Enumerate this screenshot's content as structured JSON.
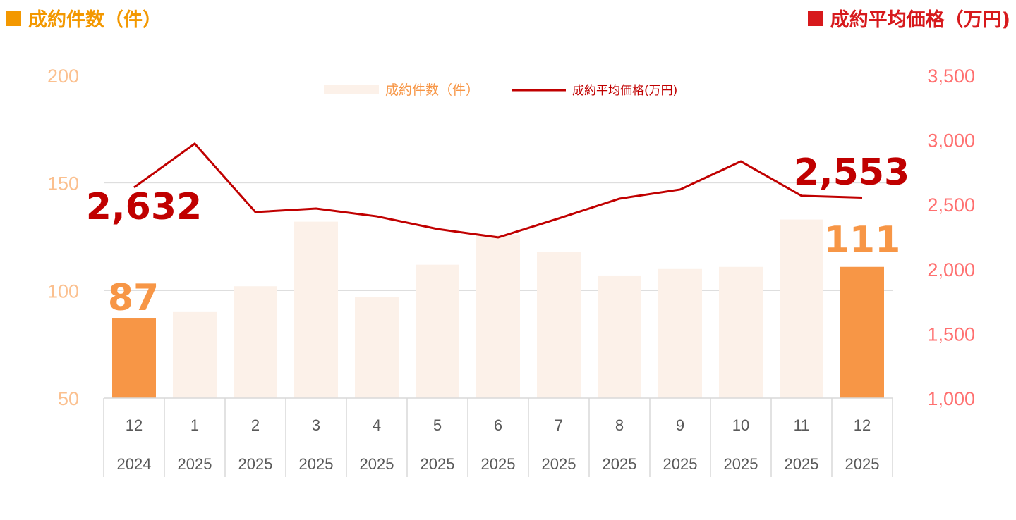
{
  "left_title": "成約件数（件）",
  "right_title": "成約平均価格（万円)",
  "colors": {
    "left_title": "#F39800",
    "right_title": "#D7191C",
    "bar": "#FCF1E9",
    "bar_highlight": "#F79646",
    "line": "#C00000",
    "left_ticks": "#FBC08F",
    "right_ticks": "#FF6F6F"
  },
  "chart_data": {
    "type": "bar+line",
    "categories": [
      "12",
      "1",
      "2",
      "3",
      "4",
      "5",
      "6",
      "7",
      "8",
      "9",
      "10",
      "11",
      "12"
    ],
    "years": [
      "2024",
      "2025",
      "2025",
      "2025",
      "2025",
      "2025",
      "2025",
      "2025",
      "2025",
      "2025",
      "2025",
      "2025",
      "2025"
    ],
    "series": [
      {
        "name": "成約件数（件）",
        "type": "bar",
        "axis": "left",
        "values": [
          87,
          90,
          102,
          132,
          97,
          112,
          126,
          118,
          107,
          110,
          111,
          133,
          111
        ]
      },
      {
        "name": "成約平均価格(万円)",
        "type": "line",
        "axis": "right",
        "values": [
          2632,
          2971,
          2441,
          2468,
          2408,
          2310,
          2245,
          2392,
          2545,
          2616,
          2834,
          2567,
          2553
        ]
      }
    ],
    "left_axis": {
      "ylim": [
        50,
        200
      ],
      "ticks": [
        "50",
        "100",
        "150",
        "200"
      ]
    },
    "right_axis": {
      "ylim": [
        1000,
        3500
      ],
      "ticks": [
        "1,000",
        "1,500",
        "2,000",
        "2,500",
        "3,000",
        "3,500"
      ]
    },
    "annotations": {
      "line_first": "2,632",
      "line_last": "2,553",
      "bar_first": "87",
      "bar_last": "111"
    },
    "grid": true,
    "legend": "top-center"
  }
}
